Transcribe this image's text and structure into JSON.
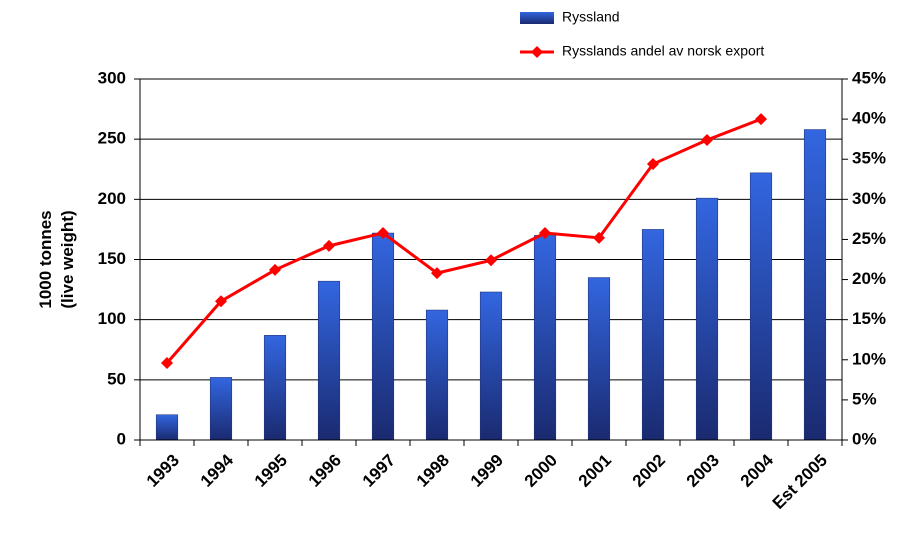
{
  "chart_data": {
    "type": "bar_line",
    "categories": [
      "1993",
      "1994",
      "1995",
      "1996",
      "1997",
      "1998",
      "1999",
      "2000",
      "2001",
      "2002",
      "2003",
      "2004",
      "Est 2005"
    ],
    "series": [
      {
        "name": "Ryssland",
        "color": "#3366e0",
        "type": "bar",
        "values": [
          21,
          52,
          87,
          132,
          172,
          108,
          123,
          170,
          135,
          175,
          201,
          222,
          258
        ]
      },
      {
        "name": "Rysslands andel av norsk export",
        "color": "#ff0000",
        "type": "line",
        "axis": "y2",
        "values": [
          9.6,
          17.3,
          21.2,
          24.2,
          25.8,
          20.8,
          22.4,
          25.8,
          25.2,
          34.4,
          37.4,
          40,
          null
        ]
      }
    ],
    "ylabel": [
      "1000 tonnes",
      "(live weight)"
    ],
    "ylim": [
      0,
      300
    ],
    "yticks": [
      0,
      50,
      100,
      150,
      200,
      250,
      300
    ],
    "y2lim": [
      0,
      45
    ],
    "y2ticks": [
      {
        "value": 0,
        "label": "0%"
      },
      {
        "value": 5,
        "label": "5%"
      },
      {
        "value": 10,
        "label": "10%"
      },
      {
        "value": 15,
        "label": "15%"
      },
      {
        "value": 20,
        "label": "20%"
      },
      {
        "value": 25,
        "label": "25%"
      },
      {
        "value": 30,
        "label": "30%"
      },
      {
        "value": 35,
        "label": "35%"
      },
      {
        "value": 40,
        "label": "40%"
      },
      {
        "value": 45,
        "label": "45%"
      }
    ],
    "grid": true,
    "legend": "top"
  }
}
